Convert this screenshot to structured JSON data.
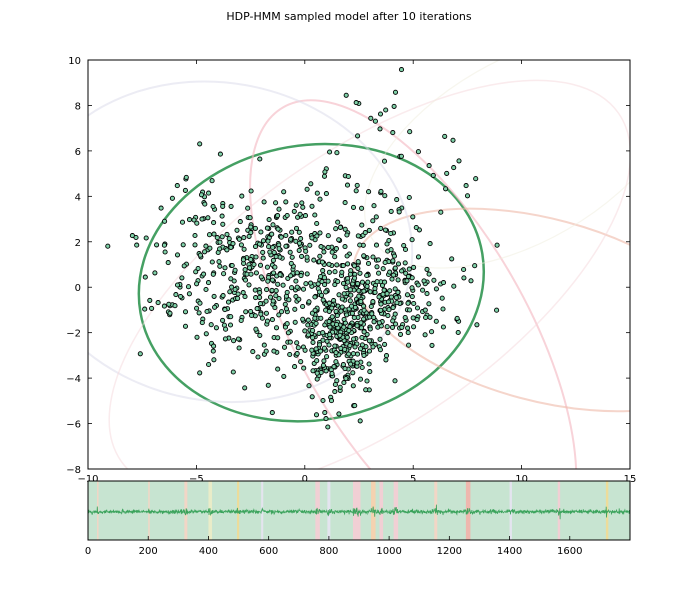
{
  "chart_data": [
    {
      "type": "scatter",
      "title": "HDP-HMM sampled model after 10 iterations",
      "xlim": [
        -10,
        15
      ],
      "ylim": [
        -8,
        10
      ],
      "x_ticks": [
        -10,
        -5,
        0,
        5,
        10,
        15
      ],
      "y_ticks": [
        -8,
        -6,
        -4,
        -2,
        0,
        2,
        4,
        6,
        8,
        10
      ],
      "x_tick_labels": [
        "−10",
        "−5",
        "0",
        "5",
        "10",
        "15"
      ],
      "y_tick_labels": [
        "−8",
        "−6",
        "−4",
        "−2",
        "0",
        "2",
        "4",
        "6",
        "8",
        "10"
      ],
      "grid": false,
      "point_color": "#7fd1a8",
      "point_edge_color": "#000000",
      "clusters": [
        {
          "cx": 0.5,
          "cy": 0.5,
          "sx": 3.0,
          "sy": 2.0,
          "n": 480,
          "seed": 11
        },
        {
          "cx": 1.5,
          "cy": -2.3,
          "sx": 0.9,
          "sy": 1.3,
          "n": 280,
          "seed": 23
        },
        {
          "cx": -3.5,
          "cy": 1.0,
          "sx": 1.8,
          "sy": 2.0,
          "n": 200,
          "seed": 37
        },
        {
          "cx": 4.0,
          "cy": -0.5,
          "sx": 1.2,
          "sy": 1.0,
          "n": 120,
          "seed": 51
        },
        {
          "cx": 3.5,
          "cy": 5.0,
          "sx": 2.0,
          "sy": 1.8,
          "n": 45,
          "seed": 67
        }
      ],
      "ellipses": [
        {
          "cx": 0.3,
          "cy": 0.2,
          "rx": 8.0,
          "ry": 6.05,
          "angle": -10,
          "color": "#3b9b5b",
          "opacity": 0.95,
          "width": 2.5
        },
        {
          "cx": 5.0,
          "cy": -2.0,
          "rx": 12.0,
          "ry": 5.0,
          "angle": 60,
          "color": "#f4b6c0",
          "opacity": 0.6,
          "width": 2
        },
        {
          "cx": 11.0,
          "cy": -1.0,
          "rx": 9.0,
          "ry": 4.0,
          "angle": 15,
          "color": "#eeb9a8",
          "opacity": 0.6,
          "width": 2
        },
        {
          "cx": -4.0,
          "cy": 2.0,
          "rx": 9.0,
          "ry": 7.0,
          "angle": 10,
          "color": "#dcdceb",
          "opacity": 0.55,
          "width": 2
        },
        {
          "cx": 3.0,
          "cy": 0.0,
          "rx": 14.0,
          "ry": 6.0,
          "angle": -35,
          "color": "#f6d8dc",
          "opacity": 0.5,
          "width": 1.5
        },
        {
          "cx": 10.0,
          "cy": 6.0,
          "rx": 8.0,
          "ry": 4.0,
          "angle": -30,
          "color": "#efeedd",
          "opacity": 0.5,
          "width": 1.2
        }
      ]
    },
    {
      "type": "line",
      "x_ticks": [
        0,
        200,
        400,
        600,
        800,
        1000,
        1200,
        1400,
        1600
      ],
      "x_tick_labels": [
        "0",
        "200",
        "400",
        "600",
        "800",
        "1000",
        "1200",
        "1400",
        "1600"
      ],
      "xlim": [
        0,
        1800
      ],
      "n_points": 1800,
      "series_color": "#3ba35c",
      "background_color": "#c7e4d1",
      "state_bands": [
        {
          "start": 30,
          "end": 35,
          "color": "#f2d6c6"
        },
        {
          "start": 200,
          "end": 205,
          "color": "#f2d6c6"
        },
        {
          "start": 320,
          "end": 330,
          "color": "#f2d6c6"
        },
        {
          "start": 400,
          "end": 412,
          "color": "#e9ecc8"
        },
        {
          "start": 495,
          "end": 502,
          "color": "#eddc9a"
        },
        {
          "start": 575,
          "end": 582,
          "color": "#e4e4ef"
        },
        {
          "start": 755,
          "end": 770,
          "color": "#f1cfd4"
        },
        {
          "start": 795,
          "end": 805,
          "color": "#e4e4ef"
        },
        {
          "start": 880,
          "end": 905,
          "color": "#f1cfd4"
        },
        {
          "start": 940,
          "end": 955,
          "color": "#f4d2b0"
        },
        {
          "start": 968,
          "end": 980,
          "color": "#f1cfd4"
        },
        {
          "start": 1015,
          "end": 1030,
          "color": "#f1cfd4"
        },
        {
          "start": 1150,
          "end": 1160,
          "color": "#f2d6c6"
        },
        {
          "start": 1255,
          "end": 1270,
          "color": "#eeb7ae"
        },
        {
          "start": 1400,
          "end": 1408,
          "color": "#e4e4ef"
        },
        {
          "start": 1560,
          "end": 1568,
          "color": "#f1cfd4"
        },
        {
          "start": 1720,
          "end": 1728,
          "color": "#eddc9a"
        }
      ]
    }
  ]
}
